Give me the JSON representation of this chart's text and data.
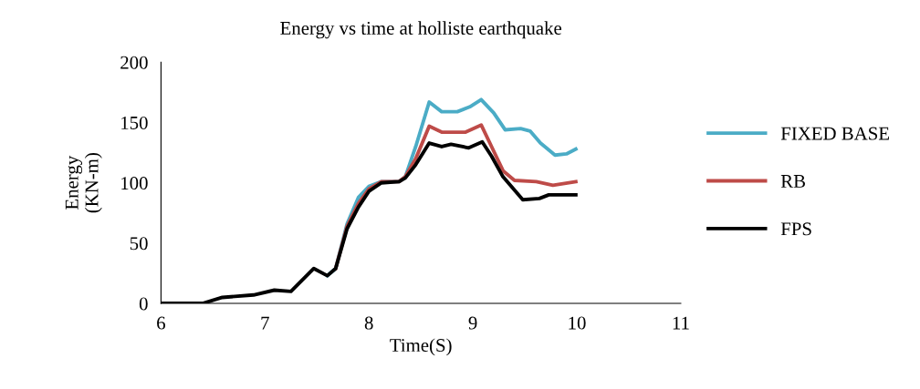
{
  "chart_data": {
    "type": "line",
    "title": "Energy vs time at holliste earthquake",
    "xlabel": "Time(S)",
    "ylabel": "Energy\n(KN-m)",
    "xlim": [
      6,
      11
    ],
    "xticks": [
      6,
      7,
      8,
      9,
      10,
      11
    ],
    "ylim": [
      0,
      200
    ],
    "yticks": [
      0,
      50,
      100,
      150,
      200
    ],
    "grid": false,
    "legend": "right",
    "marker": "none",
    "line_style": "solid",
    "series": [
      {
        "name": "FIXED BASE",
        "color": "#4bacc6",
        "x": [
          7.6,
          7.68,
          7.79,
          7.9,
          8.0,
          8.12,
          8.29,
          8.35,
          8.45,
          8.58,
          8.7,
          8.85,
          8.97,
          9.08,
          9.2,
          9.31,
          9.46,
          9.55,
          9.65,
          9.79,
          9.9,
          9.99
        ],
        "values": [
          23,
          29,
          66,
          88,
          97,
          101,
          101,
          105,
          130,
          167,
          159,
          159,
          163,
          169,
          158,
          144,
          145,
          143,
          133,
          123,
          124,
          128
        ]
      },
      {
        "name": "RB",
        "color": "#be4b48",
        "x": [
          7.68,
          7.79,
          7.9,
          8.0,
          8.12,
          8.29,
          8.35,
          8.45,
          8.58,
          8.7,
          8.93,
          9.08,
          9.18,
          9.29,
          9.4,
          9.61,
          9.77,
          9.99
        ],
        "values": [
          29,
          64,
          83,
          95,
          101,
          101,
          105,
          120,
          147,
          142,
          142,
          148,
          130,
          110,
          102,
          101,
          98,
          101
        ]
      },
      {
        "name": "FPS",
        "color": "#000000",
        "x": [
          6,
          6.4,
          6.59,
          6.89,
          7.09,
          7.25,
          7.47,
          7.6,
          7.68,
          7.79,
          7.9,
          8.0,
          8.12,
          8.29,
          8.35,
          8.45,
          8.58,
          8.7,
          8.79,
          8.96,
          9.09,
          9.18,
          9.29,
          9.48,
          9.64,
          9.73,
          9.99
        ],
        "values": [
          0,
          0,
          5,
          7,
          11,
          10,
          29,
          23,
          29,
          62,
          80,
          93,
          100,
          101,
          104,
          115,
          133,
          130,
          132,
          129,
          134,
          122,
          105,
          86,
          87,
          90,
          90
        ]
      }
    ]
  }
}
